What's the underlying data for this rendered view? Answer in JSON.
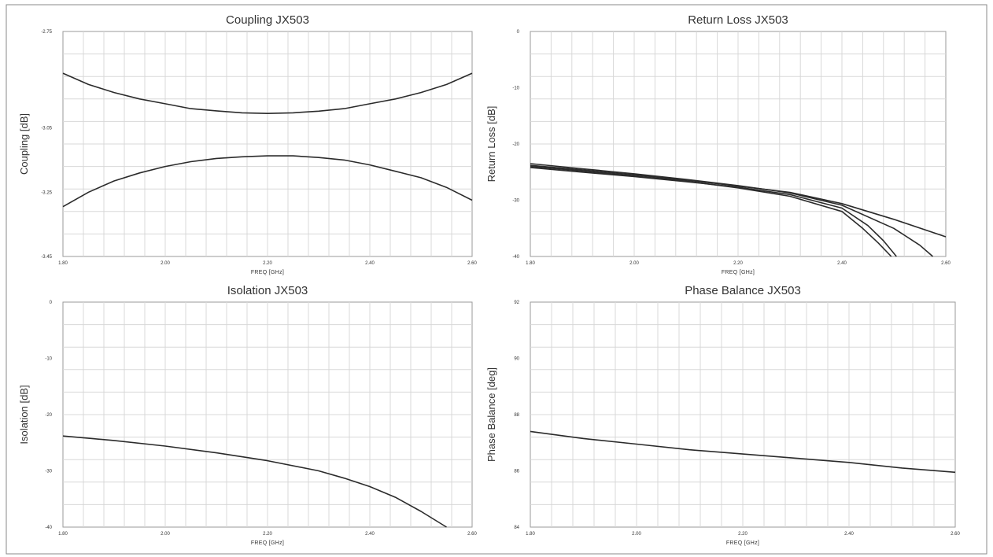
{
  "chart_data": [
    {
      "type": "line",
      "title": "Coupling JX503",
      "xlabel": "FREQ [GHz]",
      "ylabel": "Coupling [dB]",
      "xlim": [
        1.8,
        2.6
      ],
      "ylim": [
        -3.45,
        -2.75
      ],
      "xticks": [
        1.8,
        2.0,
        2.2,
        2.4,
        2.6
      ],
      "xtick_labels": [
        "1.80",
        "2.00",
        "2.20",
        "2.40",
        "2.60"
      ],
      "yticks": [
        -2.75,
        -3.05,
        -3.25,
        -3.45
      ],
      "ytick_labels": [
        "-2.75",
        "-3.05",
        "-3.25",
        "-3.45"
      ],
      "grid": true,
      "series": [
        {
          "x": [
            1.8,
            1.85,
            1.9,
            1.95,
            2.0,
            2.05,
            2.1,
            2.15,
            2.2,
            2.25,
            2.3,
            2.35,
            2.4,
            2.45,
            2.5,
            2.55,
            2.6
          ],
          "values": [
            -2.88,
            -2.915,
            -2.94,
            -2.96,
            -2.975,
            -2.99,
            -2.997,
            -3.003,
            -3.005,
            -3.003,
            -2.998,
            -2.99,
            -2.975,
            -2.96,
            -2.94,
            -2.915,
            -2.88
          ]
        },
        {
          "x": [
            1.8,
            1.85,
            1.9,
            1.95,
            2.0,
            2.05,
            2.1,
            2.15,
            2.2,
            2.25,
            2.3,
            2.35,
            2.4,
            2.45,
            2.5,
            2.55,
            2.6
          ],
          "values": [
            -3.295,
            -3.25,
            -3.215,
            -3.19,
            -3.17,
            -3.155,
            -3.145,
            -3.14,
            -3.137,
            -3.137,
            -3.142,
            -3.15,
            -3.165,
            -3.185,
            -3.205,
            -3.235,
            -3.275
          ]
        }
      ]
    },
    {
      "type": "line",
      "title": "Return Loss JX503",
      "xlabel": "FREQ [GHz]",
      "ylabel": "Return Loss [dB]",
      "xlim": [
        1.8,
        2.6
      ],
      "ylim": [
        -40,
        0
      ],
      "xticks": [
        1.8,
        2.0,
        2.2,
        2.4,
        2.6
      ],
      "xtick_labels": [
        "1.80",
        "2.00",
        "2.20",
        "2.40",
        "2.60"
      ],
      "yticks": [
        0,
        -10,
        -20,
        -30,
        -40
      ],
      "ytick_labels": [
        "0",
        "-10",
        "-20",
        "-30",
        "-40"
      ],
      "grid": true,
      "series": [
        {
          "x": [
            1.8,
            1.9,
            2.0,
            2.1,
            2.2,
            2.3,
            2.4,
            2.5,
            2.6
          ],
          "values": [
            -23.8,
            -24.6,
            -25.5,
            -26.4,
            -27.5,
            -28.6,
            -30.6,
            -33.4,
            -36.5
          ]
        },
        {
          "x": [
            1.8,
            1.9,
            2.0,
            2.1,
            2.2,
            2.3,
            2.4,
            2.5,
            2.55,
            2.575
          ],
          "values": [
            -23.5,
            -24.4,
            -25.3,
            -26.3,
            -27.4,
            -28.7,
            -30.9,
            -35.0,
            -38.0,
            -40.0
          ]
        },
        {
          "x": [
            1.8,
            1.9,
            2.0,
            2.1,
            2.2,
            2.3,
            2.4,
            2.45,
            2.48,
            2.505
          ],
          "values": [
            -24.2,
            -25.0,
            -25.8,
            -26.7,
            -27.7,
            -29.0,
            -31.4,
            -34.5,
            -37.2,
            -40.0
          ]
        },
        {
          "x": [
            1.8,
            1.9,
            2.0,
            2.1,
            2.2,
            2.3,
            2.4,
            2.44,
            2.47,
            2.495
          ],
          "values": [
            -24.0,
            -24.8,
            -25.7,
            -26.6,
            -27.8,
            -29.3,
            -32.0,
            -35.0,
            -37.6,
            -40.0
          ]
        }
      ]
    },
    {
      "type": "line",
      "title": "Isolation JX503",
      "xlabel": "FREQ [GHz]",
      "ylabel": "Isolation [dB]",
      "xlim": [
        1.8,
        2.6
      ],
      "ylim": [
        -40,
        0
      ],
      "xticks": [
        1.8,
        2.0,
        2.2,
        2.4,
        2.6
      ],
      "xtick_labels": [
        "1.80",
        "2.00",
        "2.20",
        "2.40",
        "2.60"
      ],
      "yticks": [
        0,
        -10,
        -20,
        -30,
        -40
      ],
      "ytick_labels": [
        "0",
        "-10",
        "-20",
        "-30",
        "-40"
      ],
      "grid": true,
      "series": [
        {
          "x": [
            1.8,
            1.9,
            2.0,
            2.1,
            2.2,
            2.3,
            2.35,
            2.4,
            2.45,
            2.5,
            2.55
          ],
          "values": [
            -23.8,
            -24.6,
            -25.6,
            -26.8,
            -28.2,
            -30.0,
            -31.3,
            -32.8,
            -34.7,
            -37.2,
            -40.0
          ]
        }
      ]
    },
    {
      "type": "line",
      "title": "Phase Balance JX503",
      "xlabel": "FREQ [GHz]",
      "ylabel": "Phase Balance [deg]",
      "xlim": [
        1.8,
        2.6
      ],
      "ylim": [
        84,
        92
      ],
      "xticks": [
        1.8,
        2.0,
        2.2,
        2.4,
        2.6
      ],
      "xtick_labels": [
        "1.80",
        "2.00",
        "2.20",
        "2.40",
        "2.60"
      ],
      "yticks": [
        92,
        90,
        88,
        86,
        84
      ],
      "ytick_labels": [
        "92",
        "90",
        "88",
        "86",
        "84"
      ],
      "grid": true,
      "series": [
        {
          "x": [
            1.8,
            1.9,
            2.0,
            2.1,
            2.2,
            2.3,
            2.4,
            2.5,
            2.6
          ],
          "values": [
            87.4,
            87.15,
            86.95,
            86.75,
            86.6,
            86.45,
            86.3,
            86.1,
            85.95
          ]
        }
      ]
    }
  ]
}
